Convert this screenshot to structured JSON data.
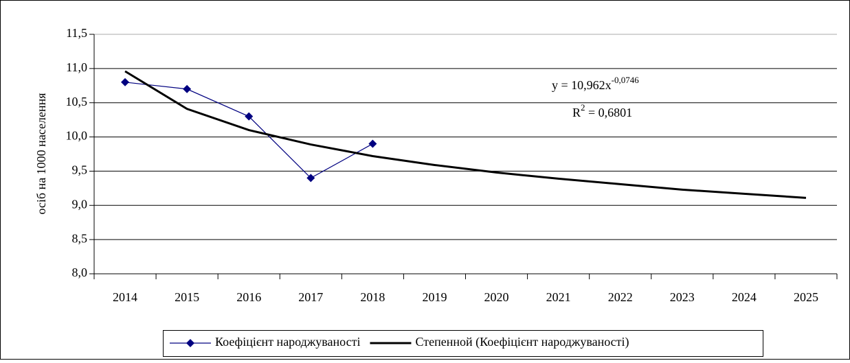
{
  "chart_data": {
    "type": "line",
    "y_label": "осіб на 1000 населення",
    "categories": [
      "2014",
      "2015",
      "2016",
      "2017",
      "2018",
      "2019",
      "2020",
      "2021",
      "2022",
      "2023",
      "2024",
      "2025"
    ],
    "series": [
      {
        "name": "Коефіцієнт народжуваності",
        "color": "#000080",
        "marker": "diamond",
        "values": [
          10.8,
          10.7,
          10.3,
          9.4,
          9.9,
          null,
          null,
          null,
          null,
          null,
          null,
          null
        ]
      },
      {
        "name": "Степенной (Коефіцієнт народжуваності)",
        "color": "#000000",
        "values": [
          10.96,
          10.41,
          10.1,
          9.89,
          9.72,
          9.59,
          9.48,
          9.39,
          9.31,
          9.23,
          9.17,
          9.11
        ]
      }
    ],
    "ylim": [
      8,
      11.5
    ],
    "yticks": [
      {
        "value": 8,
        "label": "8,0"
      },
      {
        "value": 8.5,
        "label": "8,5"
      },
      {
        "value": 9,
        "label": "9,0"
      },
      {
        "value": 9.5,
        "label": "9,5"
      },
      {
        "value": 10,
        "label": "10,0"
      },
      {
        "value": 10.5,
        "label": "10,5"
      },
      {
        "value": 11,
        "label": "11,0"
      },
      {
        "value": 11.5,
        "label": "11,5"
      }
    ],
    "grid": true,
    "legend": "bottom",
    "annotations": {
      "equation": "y = 10,962x",
      "exponent": "-0,0746",
      "r_label": "R",
      "r_power": "2",
      "r_value": " = 0,6801"
    }
  }
}
